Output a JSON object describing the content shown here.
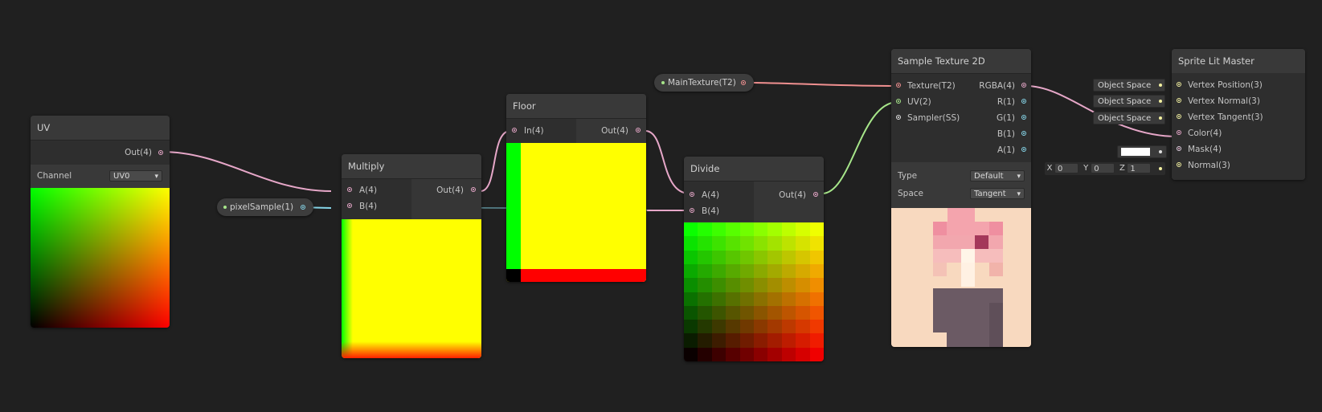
{
  "colors": {
    "background": "#202020",
    "node_body": "#393939",
    "vector4_port": "#e6a7c8",
    "vector1_port": "#86d5e8",
    "vector2_port": "#a7e68a",
    "texture_port": "#f09090",
    "vector3_port": "#f2f0a0"
  },
  "nodes": {
    "uv": {
      "title": "UV",
      "out": "Out(4)",
      "channel_label": "Channel",
      "channel_value": "UV0"
    },
    "multiply": {
      "title": "Multiply",
      "in_a": "A(4)",
      "in_b": "B(4)",
      "out": "Out(4)"
    },
    "floor": {
      "title": "Floor",
      "in": "In(4)",
      "out": "Out(4)"
    },
    "divide": {
      "title": "Divide",
      "in_a": "A(4)",
      "in_b": "B(4)",
      "out": "Out(4)"
    },
    "sample_texture": {
      "title": "Sample Texture 2D",
      "inputs": [
        "Texture(T2)",
        "UV(2)",
        "Sampler(SS)"
      ],
      "outputs": [
        "RGBA(4)",
        "R(1)",
        "G(1)",
        "B(1)",
        "A(1)"
      ],
      "type_label": "Type",
      "type_value": "Default",
      "space_label": "Space",
      "space_value": "Tangent"
    },
    "master": {
      "title": "Sprite Lit Master",
      "inputs": [
        "Vertex Position(3)",
        "Vertex Normal(3)",
        "Vertex Tangent(3)",
        "Color(4)",
        "Mask(4)",
        "Normal(3)"
      ]
    }
  },
  "properties": {
    "pixel_sample": "pixelSample(1)",
    "main_texture": "MainTexture(T2)"
  },
  "master_defaults": {
    "space_fields": [
      "Object Space",
      "Object Space",
      "Object Space"
    ],
    "normal_vector": {
      "x_label": "X",
      "x": "0",
      "y_label": "Y",
      "y": "0",
      "z_label": "Z",
      "z": "1"
    }
  }
}
